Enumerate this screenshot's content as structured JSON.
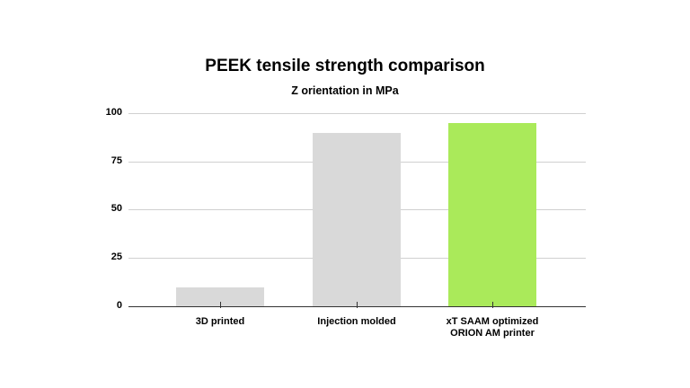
{
  "chart_data": {
    "type": "bar",
    "title": "PEEK tensile strength comparison",
    "subtitle": "Z orientation in MPa",
    "categories": [
      "3D printed",
      "Injection molded",
      "xT SAAM optimized ORION AM printer"
    ],
    "values": [
      10,
      90,
      95
    ],
    "colors": [
      "#d9d9d9",
      "#d9d9d9",
      "#aaea5a"
    ],
    "xlabel": "",
    "ylabel": "",
    "ylim": [
      0,
      100
    ],
    "yticks": [
      0,
      25,
      50,
      75,
      100
    ],
    "grid": true,
    "legend": "none"
  },
  "labels": {
    "title": "PEEK tensile strength comparison",
    "subtitle": "Z orientation in MPa",
    "yticks": [
      "100",
      "75",
      "50",
      "25",
      "0"
    ],
    "cat1_line1": "3D printed",
    "cat2_line1": "Injection molded",
    "cat3_line1": "xT SAAM optimized",
    "cat3_line2": "ORION AM printer"
  }
}
